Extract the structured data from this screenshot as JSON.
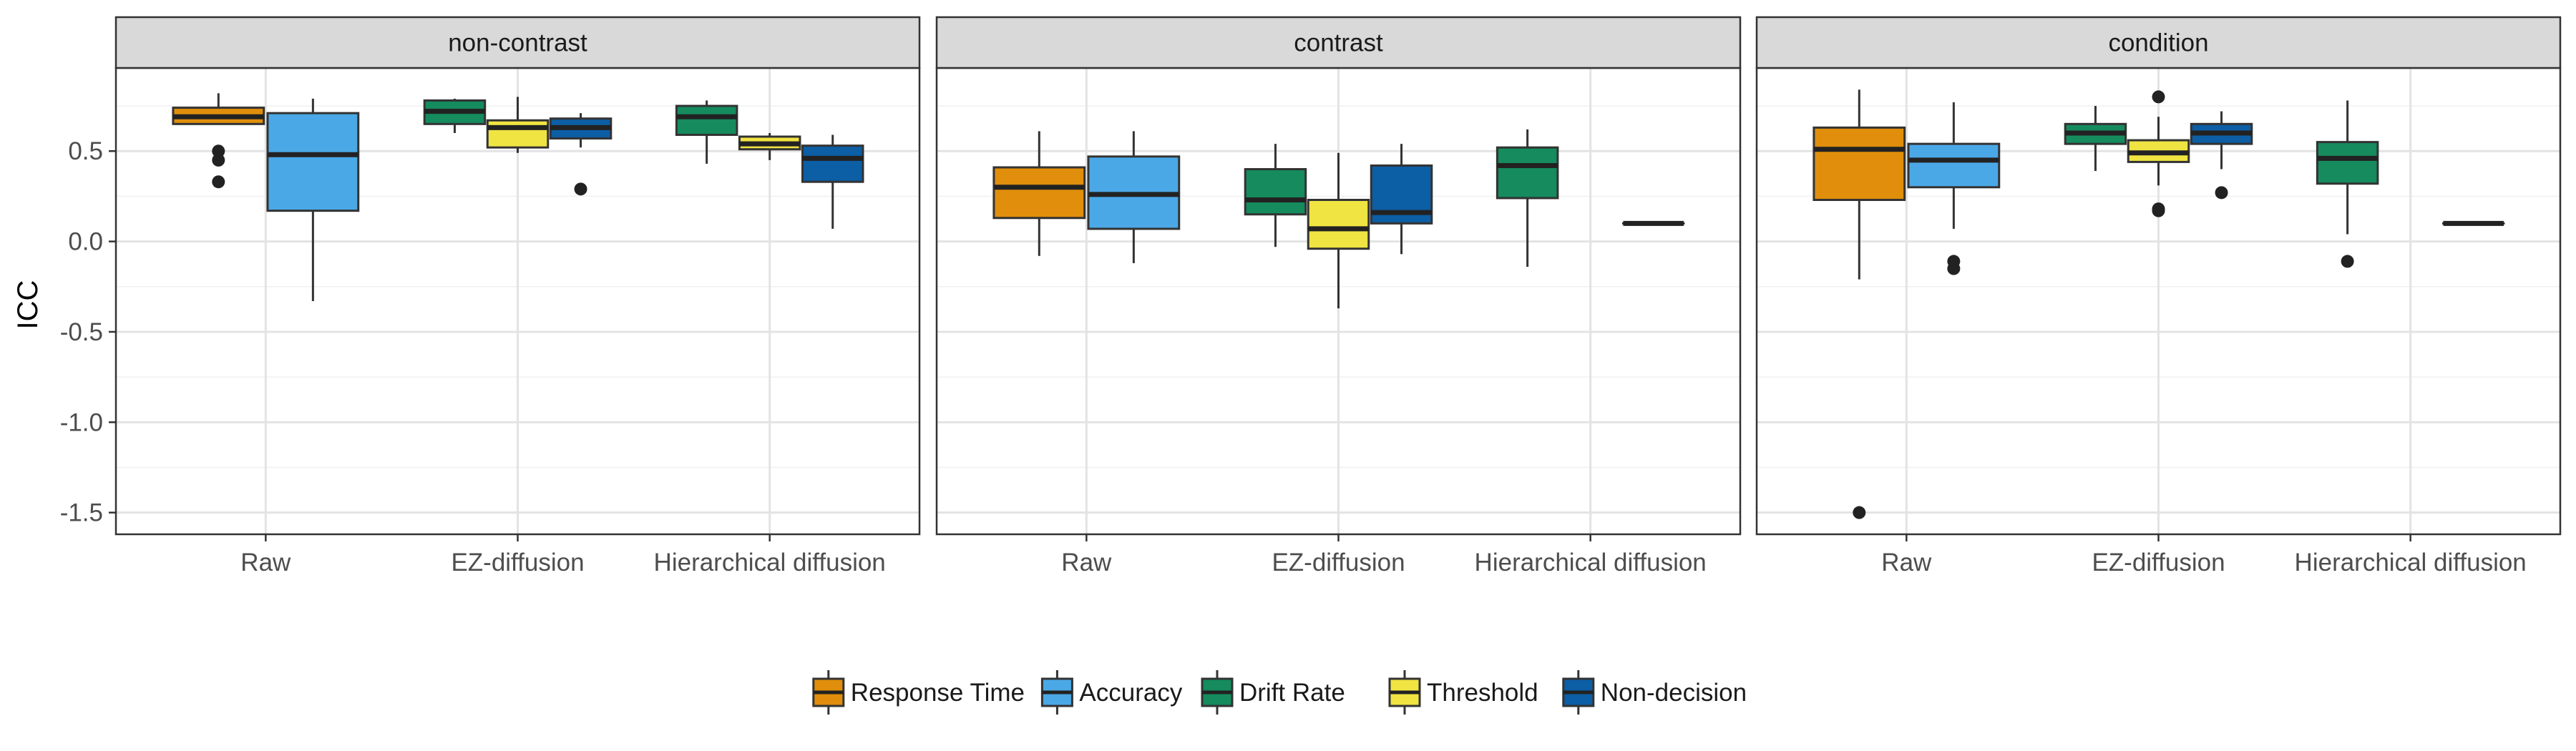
{
  "chart_data": {
    "type": "boxplot",
    "ylabel": "ICC",
    "ylim": [
      -1.62,
      0.96
    ],
    "y_ticks": [
      -1.5,
      -1.0,
      -0.5,
      0.0,
      0.5
    ],
    "y_tick_labels": [
      "-1.5",
      "-1.0",
      "-0.5",
      "0.0",
      "0.5"
    ],
    "categories": [
      "Raw",
      "EZ-diffusion",
      "Hierarchical diffusion"
    ],
    "legend_position": "bottom",
    "legend": [
      {
        "name": "Response Time",
        "color": "#E08E0B"
      },
      {
        "name": "Accuracy",
        "color": "#4BA8E6"
      },
      {
        "name": "Drift Rate",
        "color": "#158B5E"
      },
      {
        "name": "Threshold",
        "color": "#F0E442"
      },
      {
        "name": "Non-decision",
        "color": "#0C5EA5"
      }
    ],
    "panels": [
      {
        "title": "non-contrast",
        "boxes": [
          {
            "category": "Raw",
            "series": "Response Time",
            "slot": 0,
            "width": 2,
            "min": 0.65,
            "q1": 0.65,
            "median": 0.69,
            "q3": 0.74,
            "max": 0.82,
            "outliers": [
              0.33,
              0.45,
              0.5
            ]
          },
          {
            "category": "Raw",
            "series": "Accuracy",
            "slot": 1,
            "width": 2,
            "min": -0.33,
            "q1": 0.17,
            "median": 0.48,
            "q3": 0.71,
            "max": 0.79,
            "outliers": []
          },
          {
            "category": "EZ-diffusion",
            "series": "Drift Rate",
            "slot": 0,
            "width": 3,
            "min": 0.6,
            "q1": 0.65,
            "median": 0.72,
            "q3": 0.78,
            "max": 0.79,
            "outliers": []
          },
          {
            "category": "EZ-diffusion",
            "series": "Threshold",
            "slot": 1,
            "width": 3,
            "min": 0.49,
            "q1": 0.52,
            "median": 0.63,
            "q3": 0.67,
            "max": 0.8,
            "outliers": []
          },
          {
            "category": "EZ-diffusion",
            "series": "Non-decision",
            "slot": 2,
            "width": 3,
            "min": 0.52,
            "q1": 0.57,
            "median": 0.63,
            "q3": 0.68,
            "max": 0.71,
            "outliers": [
              0.29
            ]
          },
          {
            "category": "Hierarchical diffusion",
            "series": "Drift Rate",
            "slot": 0,
            "width": 3,
            "min": 0.43,
            "q1": 0.59,
            "median": 0.69,
            "q3": 0.75,
            "max": 0.78,
            "outliers": []
          },
          {
            "category": "Hierarchical diffusion",
            "series": "Threshold",
            "slot": 1,
            "width": 3,
            "min": 0.45,
            "q1": 0.51,
            "median": 0.54,
            "q3": 0.58,
            "max": 0.6,
            "outliers": []
          },
          {
            "category": "Hierarchical diffusion",
            "series": "Non-decision",
            "slot": 2,
            "width": 3,
            "min": 0.07,
            "q1": 0.33,
            "median": 0.46,
            "q3": 0.53,
            "max": 0.59,
            "outliers": []
          }
        ]
      },
      {
        "title": "contrast",
        "boxes": [
          {
            "category": "Raw",
            "series": "Response Time",
            "slot": 0,
            "width": 2,
            "min": -0.08,
            "q1": 0.13,
            "median": 0.3,
            "q3": 0.41,
            "max": 0.61,
            "outliers": []
          },
          {
            "category": "Raw",
            "series": "Accuracy",
            "slot": 1,
            "width": 2,
            "min": -0.12,
            "q1": 0.07,
            "median": 0.26,
            "q3": 0.47,
            "max": 0.61,
            "outliers": []
          },
          {
            "category": "EZ-diffusion",
            "series": "Drift Rate",
            "slot": 0,
            "width": 3,
            "min": -0.03,
            "q1": 0.15,
            "median": 0.23,
            "q3": 0.4,
            "max": 0.54,
            "outliers": []
          },
          {
            "category": "EZ-diffusion",
            "series": "Threshold",
            "slot": 1,
            "width": 3,
            "min": -0.37,
            "q1": -0.04,
            "median": 0.07,
            "q3": 0.23,
            "max": 0.49,
            "outliers": []
          },
          {
            "category": "EZ-diffusion",
            "series": "Non-decision",
            "slot": 2,
            "width": 3,
            "min": -0.07,
            "q1": 0.1,
            "median": 0.16,
            "q3": 0.42,
            "max": 0.54,
            "outliers": []
          },
          {
            "category": "Hierarchical diffusion",
            "series": "Drift Rate",
            "slot": 0,
            "width": 3,
            "min": -0.14,
            "q1": 0.24,
            "median": 0.42,
            "q3": 0.52,
            "max": 0.62,
            "outliers": []
          },
          {
            "category": "Hierarchical diffusion",
            "series": "Non-decision",
            "slot": 2,
            "width": 3,
            "min": 0.1,
            "q1": 0.1,
            "median": 0.1,
            "q3": 0.1,
            "max": 0.1,
            "outliers": []
          }
        ]
      },
      {
        "title": "condition",
        "boxes": [
          {
            "category": "Raw",
            "series": "Response Time",
            "slot": 0,
            "width": 2,
            "min": -0.21,
            "q1": 0.23,
            "median": 0.51,
            "q3": 0.63,
            "max": 0.84,
            "outliers": [
              -1.5
            ]
          },
          {
            "category": "Raw",
            "series": "Accuracy",
            "slot": 1,
            "width": 2,
            "min": 0.07,
            "q1": 0.3,
            "median": 0.45,
            "q3": 0.54,
            "max": 0.77,
            "outliers": [
              -0.11,
              -0.15
            ]
          },
          {
            "category": "EZ-diffusion",
            "series": "Drift Rate",
            "slot": 0,
            "width": 3,
            "min": 0.39,
            "q1": 0.54,
            "median": 0.6,
            "q3": 0.65,
            "max": 0.75,
            "outliers": []
          },
          {
            "category": "EZ-diffusion",
            "series": "Threshold",
            "slot": 1,
            "width": 3,
            "min": 0.31,
            "q1": 0.44,
            "median": 0.49,
            "q3": 0.56,
            "max": 0.69,
            "outliers": [
              0.8,
              0.17,
              0.18
            ]
          },
          {
            "category": "EZ-diffusion",
            "series": "Non-decision",
            "slot": 2,
            "width": 3,
            "min": 0.4,
            "q1": 0.54,
            "median": 0.6,
            "q3": 0.65,
            "max": 0.72,
            "outliers": [
              0.27
            ]
          },
          {
            "category": "Hierarchical diffusion",
            "series": "Drift Rate",
            "slot": 0,
            "width": 3,
            "min": 0.04,
            "q1": 0.32,
            "median": 0.46,
            "q3": 0.55,
            "max": 0.78,
            "outliers": [
              -0.11
            ]
          },
          {
            "category": "Hierarchical diffusion",
            "series": "Non-decision",
            "slot": 2,
            "width": 3,
            "min": 0.1,
            "q1": 0.1,
            "median": 0.1,
            "q3": 0.1,
            "max": 0.1,
            "outliers": []
          }
        ]
      }
    ]
  }
}
